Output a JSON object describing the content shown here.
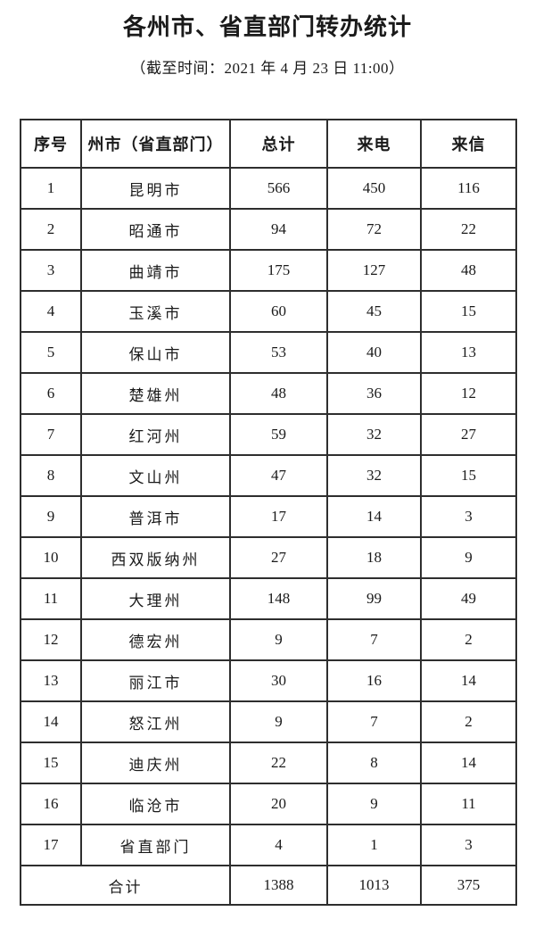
{
  "page": {
    "title": "各州市、省直部门转办统计",
    "subtitle": "（截至时间：2021 年 4 月 23 日 11:00）"
  },
  "table": {
    "headers": [
      "序号",
      "州市（省直部门）",
      "总计",
      "来电",
      "来信"
    ],
    "rows": [
      {
        "no": 1,
        "name": "昆明市",
        "total": 566,
        "calls": 450,
        "letters": 116
      },
      {
        "no": 2,
        "name": "昭通市",
        "total": 94,
        "calls": 72,
        "letters": 22
      },
      {
        "no": 3,
        "name": "曲靖市",
        "total": 175,
        "calls": 127,
        "letters": 48
      },
      {
        "no": 4,
        "name": "玉溪市",
        "total": 60,
        "calls": 45,
        "letters": 15
      },
      {
        "no": 5,
        "name": "保山市",
        "total": 53,
        "calls": 40,
        "letters": 13
      },
      {
        "no": 6,
        "name": "楚雄州",
        "total": 48,
        "calls": 36,
        "letters": 12
      },
      {
        "no": 7,
        "name": "红河州",
        "total": 59,
        "calls": 32,
        "letters": 27
      },
      {
        "no": 8,
        "name": "文山州",
        "total": 47,
        "calls": 32,
        "letters": 15
      },
      {
        "no": 9,
        "name": "普洱市",
        "total": 17,
        "calls": 14,
        "letters": 3
      },
      {
        "no": 10,
        "name": "西双版纳州",
        "total": 27,
        "calls": 18,
        "letters": 9
      },
      {
        "no": 11,
        "name": "大理州",
        "total": 148,
        "calls": 99,
        "letters": 49
      },
      {
        "no": 12,
        "name": "德宏州",
        "total": 9,
        "calls": 7,
        "letters": 2
      },
      {
        "no": 13,
        "name": "丽江市",
        "total": 30,
        "calls": 16,
        "letters": 14
      },
      {
        "no": 14,
        "name": "怒江州",
        "total": 9,
        "calls": 7,
        "letters": 2
      },
      {
        "no": 15,
        "name": "迪庆州",
        "total": 22,
        "calls": 8,
        "letters": 14
      },
      {
        "no": 16,
        "name": "临沧市",
        "total": 20,
        "calls": 9,
        "letters": 11
      },
      {
        "no": 17,
        "name": "省直部门",
        "total": 4,
        "calls": 1,
        "letters": 3
      }
    ],
    "footer": {
      "label": "合计",
      "total": 1388,
      "calls": 1013,
      "letters": 375
    }
  },
  "colors": {
    "border": "#2e2e2e",
    "text": "#1a1a1a",
    "background": "#ffffff"
  }
}
